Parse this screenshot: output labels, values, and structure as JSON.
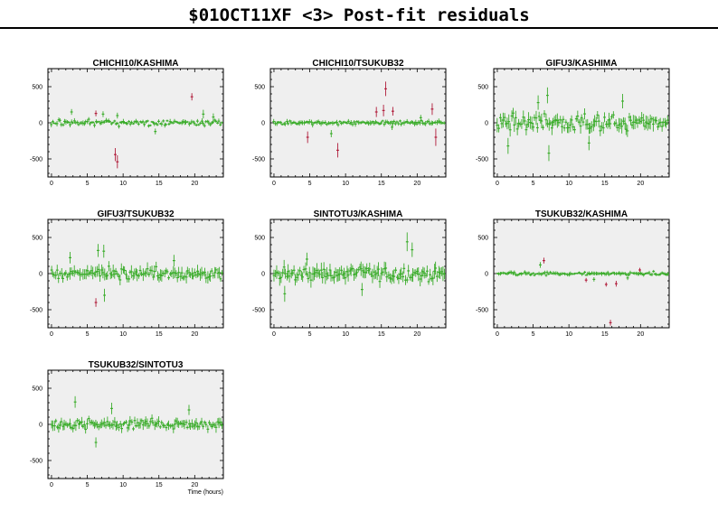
{
  "title": "$01OCT11XF <3> Post-fit residuals",
  "colors": {
    "good": "#3aac2a",
    "flagged": "#b01c3a",
    "panel_bg": "#efefef"
  },
  "chart_data": [
    {
      "type": "scatter",
      "title": "CHICHI10/KASHIMA",
      "xlim": [
        -0.5,
        24
      ],
      "ylim": [
        -750,
        750
      ],
      "xticks": [
        0,
        5,
        10,
        15,
        20
      ],
      "yticks": [
        -500,
        0,
        500
      ],
      "xlabel": "",
      "noise": 35,
      "errorbar": 25,
      "outliers": [
        {
          "x": 2.8,
          "y": 150,
          "err": 40
        },
        {
          "x": 7.2,
          "y": 120,
          "err": 40
        },
        {
          "x": 9.2,
          "y": 100,
          "err": 40
        },
        {
          "x": 21.2,
          "y": 120,
          "err": 60
        },
        {
          "x": 22.6,
          "y": 80,
          "err": 50
        },
        {
          "x": 14.5,
          "y": -120,
          "err": 40
        }
      ],
      "flagged": [
        {
          "x": 6.2,
          "y": 130,
          "err": 40
        },
        {
          "x": 8.9,
          "y": -440,
          "err": 90
        },
        {
          "x": 9.2,
          "y": -540,
          "err": 90
        },
        {
          "x": 19.6,
          "y": 360,
          "err": 50
        }
      ]
    },
    {
      "type": "scatter",
      "title": "CHICHI10/TSUKUB32",
      "xlim": [
        -0.5,
        24
      ],
      "ylim": [
        -750,
        750
      ],
      "xticks": [
        0,
        5,
        10,
        15,
        20
      ],
      "yticks": [
        -500,
        0,
        500
      ],
      "xlabel": "",
      "noise": 25,
      "errorbar": 25,
      "outliers": [
        {
          "x": 8.0,
          "y": -150,
          "err": 50
        },
        {
          "x": 16.5,
          "y": -60,
          "err": 40
        },
        {
          "x": 20.5,
          "y": 70,
          "err": 40
        }
      ],
      "flagged": [
        {
          "x": 4.7,
          "y": -200,
          "err": 80
        },
        {
          "x": 8.9,
          "y": -380,
          "err": 100
        },
        {
          "x": 14.3,
          "y": 150,
          "err": 70
        },
        {
          "x": 15.3,
          "y": 170,
          "err": 80
        },
        {
          "x": 15.6,
          "y": 470,
          "err": 100
        },
        {
          "x": 16.6,
          "y": 160,
          "err": 60
        },
        {
          "x": 22.1,
          "y": 190,
          "err": 80
        },
        {
          "x": 22.6,
          "y": -200,
          "err": 120
        }
      ]
    },
    {
      "type": "scatter",
      "title": "GIFU3/KASHIMA",
      "xlim": [
        -0.5,
        24
      ],
      "ylim": [
        -750,
        750
      ],
      "xticks": [
        0,
        5,
        10,
        15,
        20
      ],
      "yticks": [
        -500,
        0,
        500
      ],
      "xlabel": "",
      "noise": 110,
      "errorbar": 70,
      "outliers": [
        {
          "x": 1.5,
          "y": -320,
          "err": 110
        },
        {
          "x": 7.0,
          "y": 380,
          "err": 110
        },
        {
          "x": 7.2,
          "y": -420,
          "err": 110
        },
        {
          "x": 12.8,
          "y": -280,
          "err": 100
        },
        {
          "x": 5.7,
          "y": 280,
          "err": 100
        },
        {
          "x": 17.5,
          "y": 300,
          "err": 100
        }
      ],
      "flagged": []
    },
    {
      "type": "scatter",
      "title": "GIFU3/TSUKUB32",
      "xlim": [
        -0.5,
        24
      ],
      "ylim": [
        -750,
        750
      ],
      "xticks": [
        0,
        5,
        10,
        15,
        20
      ],
      "yticks": [
        -500,
        0,
        500
      ],
      "xlabel": "",
      "noise": 75,
      "errorbar": 60,
      "outliers": [
        {
          "x": 6.5,
          "y": 320,
          "err": 90
        },
        {
          "x": 7.3,
          "y": 310,
          "err": 90
        },
        {
          "x": 7.4,
          "y": -300,
          "err": 90
        },
        {
          "x": 2.6,
          "y": 220,
          "err": 80
        },
        {
          "x": 17.1,
          "y": 180,
          "err": 80
        }
      ],
      "flagged": [
        {
          "x": 6.2,
          "y": -400,
          "err": 60
        }
      ]
    },
    {
      "type": "scatter",
      "title": "SINTOTU3/KASHIMA",
      "xlim": [
        -0.5,
        24
      ],
      "ylim": [
        -750,
        750
      ],
      "xticks": [
        0,
        5,
        10,
        15,
        20
      ],
      "yticks": [
        -500,
        0,
        500
      ],
      "xlabel": "",
      "noise": 85,
      "errorbar": 70,
      "outliers": [
        {
          "x": 1.5,
          "y": -280,
          "err": 110
        },
        {
          "x": 18.6,
          "y": 440,
          "err": 130
        },
        {
          "x": 19.3,
          "y": 330,
          "err": 100
        },
        {
          "x": 4.6,
          "y": 200,
          "err": 90
        },
        {
          "x": 12.3,
          "y": -220,
          "err": 90
        }
      ],
      "flagged": []
    },
    {
      "type": "scatter",
      "title": "TSUKUB32/KASHIMA",
      "xlim": [
        -0.5,
        24
      ],
      "ylim": [
        -750,
        750
      ],
      "xticks": [
        0,
        5,
        10,
        15,
        20
      ],
      "yticks": [
        -500,
        0,
        500
      ],
      "xlabel": "",
      "noise": 22,
      "errorbar": 20,
      "outliers": [
        {
          "x": 6.0,
          "y": 120,
          "err": 40
        },
        {
          "x": 13.5,
          "y": -80,
          "err": 30
        },
        {
          "x": 18.2,
          "y": -60,
          "err": 30
        }
      ],
      "flagged": [
        {
          "x": 6.5,
          "y": 180,
          "err": 40
        },
        {
          "x": 12.4,
          "y": -90,
          "err": 30
        },
        {
          "x": 15.2,
          "y": -150,
          "err": 30
        },
        {
          "x": 15.8,
          "y": -680,
          "err": 40
        },
        {
          "x": 16.6,
          "y": -140,
          "err": 40
        },
        {
          "x": 19.9,
          "y": 50,
          "err": 30
        }
      ]
    },
    {
      "type": "scatter",
      "title": "TSUKUB32/SINTOTU3",
      "xlim": [
        -0.5,
        24
      ],
      "ylim": [
        -750,
        750
      ],
      "xticks": [
        0,
        5,
        10,
        15,
        20
      ],
      "yticks": [
        -500,
        0,
        500
      ],
      "xlabel": "Time (hours)",
      "noise": 60,
      "errorbar": 50,
      "outliers": [
        {
          "x": 3.3,
          "y": 310,
          "err": 80
        },
        {
          "x": 8.4,
          "y": 220,
          "err": 80
        },
        {
          "x": 6.2,
          "y": -250,
          "err": 70
        },
        {
          "x": 19.2,
          "y": 200,
          "err": 70
        }
      ],
      "flagged": []
    }
  ]
}
